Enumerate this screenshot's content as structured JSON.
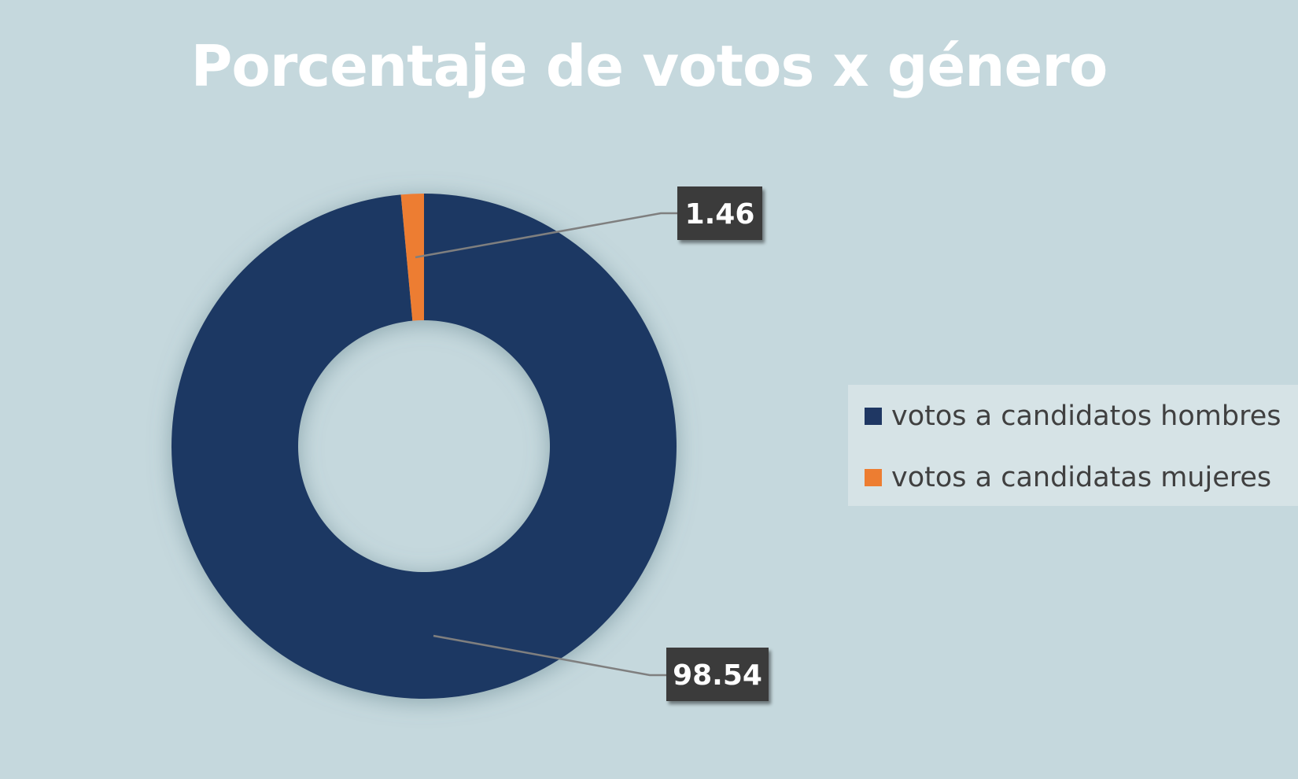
{
  "chart_data": {
    "type": "pie",
    "variant": "donut",
    "title": "Porcentaje de votos x género",
    "categories": [
      "votos a candidatos hombres",
      "votos a candidatas mujeres"
    ],
    "values": [
      98.54,
      1.46
    ],
    "data_labels": [
      "98.54",
      "1.46"
    ],
    "colors": [
      "#1f3763",
      "#ed7d31"
    ],
    "legend_placement": "right"
  }
}
